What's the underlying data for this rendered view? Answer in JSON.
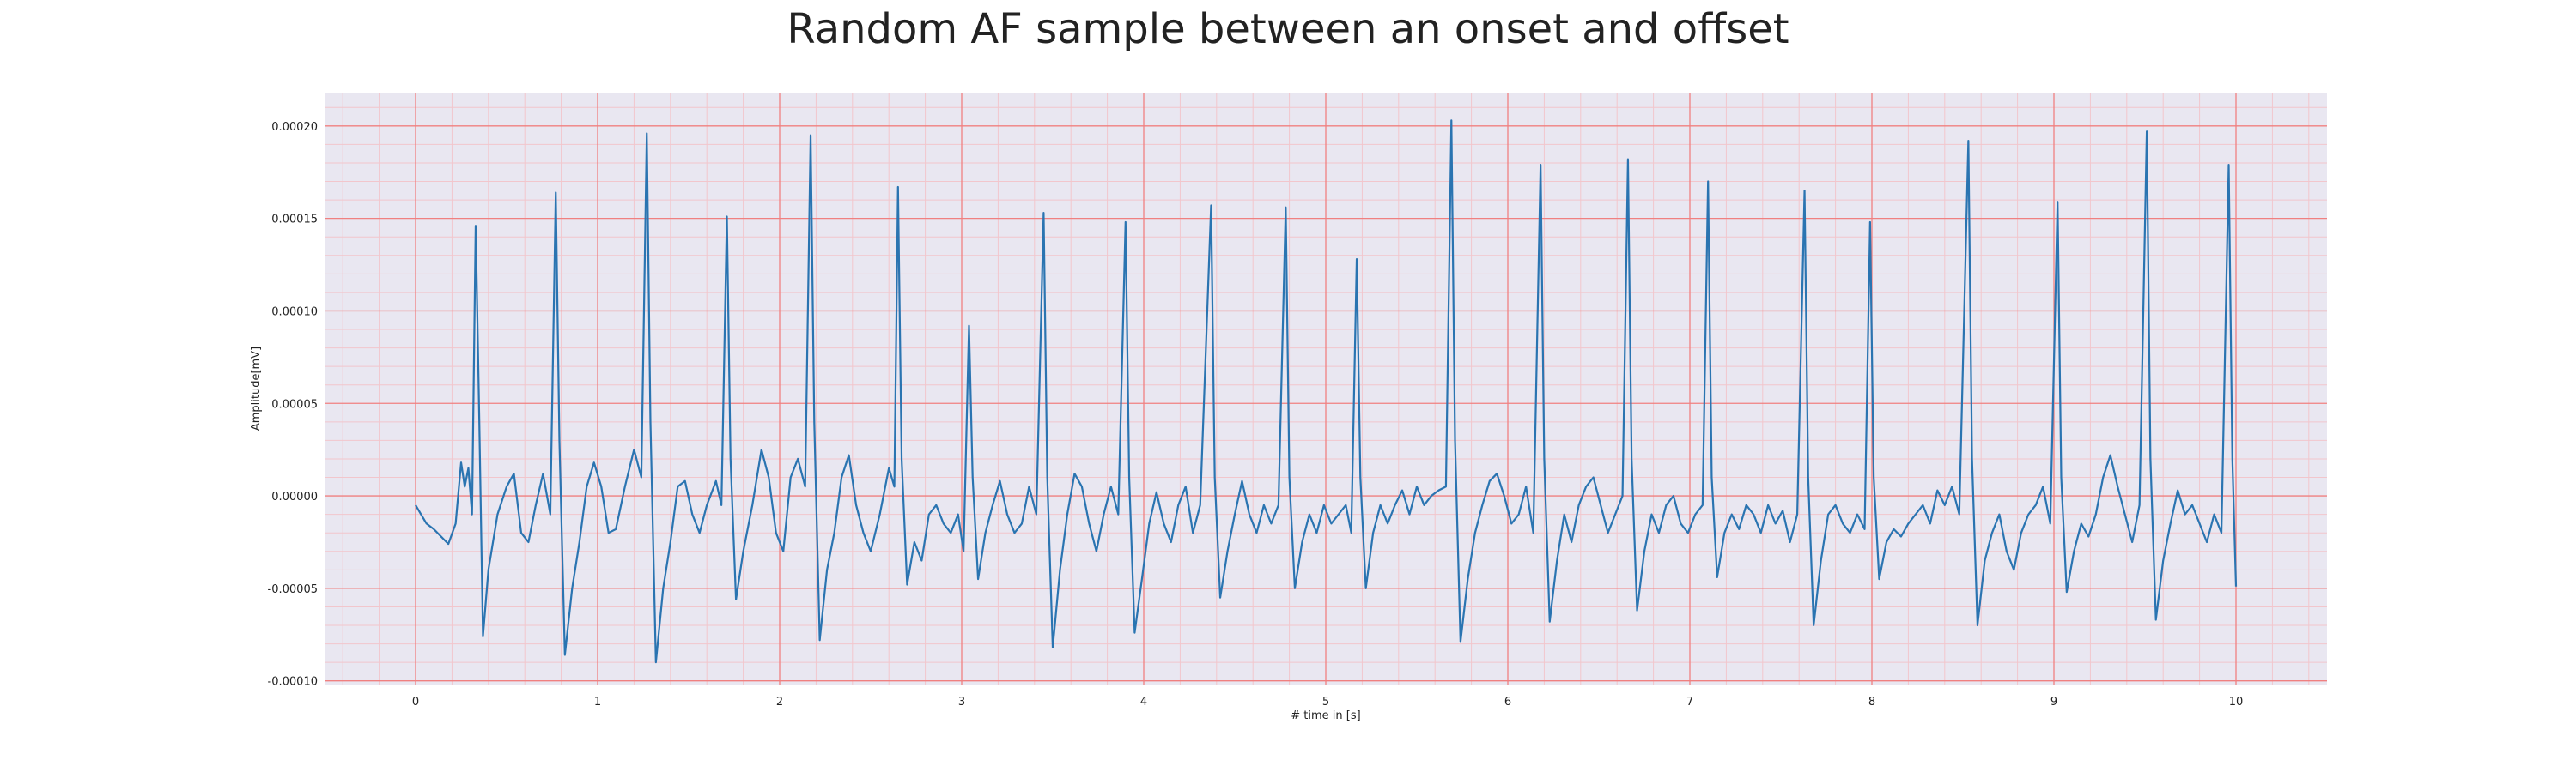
{
  "chart_data": {
    "type": "line",
    "title": "Random AF sample between an onset and offset",
    "xlabel": "# time in [s]",
    "ylabel": "Amplitude[mV]",
    "xlim": [
      -0.5,
      10.5
    ],
    "ylim": [
      -0.000102,
      0.000218
    ],
    "xticks": [
      0,
      1,
      2,
      3,
      4,
      5,
      6,
      7,
      8,
      9,
      10
    ],
    "xtick_labels": [
      "0",
      "1",
      "2",
      "3",
      "4",
      "5",
      "6",
      "7",
      "8",
      "9",
      "10"
    ],
    "yticks": [
      -0.0001,
      -5e-05,
      0.0,
      5e-05,
      0.0001,
      0.00015,
      0.0002
    ],
    "ytick_labels": [
      "-0.00010",
      "-0.00005",
      "0.00000",
      "0.00005",
      "0.00010",
      "0.00015",
      "0.00020"
    ],
    "grid": true,
    "minor_grid": true,
    "legend": "none",
    "colors": {
      "line": "#2a74b1",
      "background": "#e9e7f1",
      "major_grid": "#f08080",
      "minor_grid": "#f2c6cc"
    },
    "series": [
      {
        "values_note_free": true,
        "points": [
          [
            0.0,
            -5e-06
          ],
          [
            0.03,
            -1e-05
          ],
          [
            0.06,
            -1.5e-05
          ],
          [
            0.1,
            -1.8e-05
          ],
          [
            0.14,
            -2.2e-05
          ],
          [
            0.18,
            -2.6e-05
          ],
          [
            0.22,
            -1.5e-05
          ],
          [
            0.25,
            1.8e-05
          ],
          [
            0.27,
            5e-06
          ],
          [
            0.29,
            1.5e-05
          ],
          [
            0.31,
            -1e-05
          ],
          [
            0.33,
            0.000146
          ],
          [
            0.35,
            4e-05
          ],
          [
            0.37,
            -7.6e-05
          ],
          [
            0.4,
            -4e-05
          ],
          [
            0.45,
            -1e-05
          ],
          [
            0.5,
            5e-06
          ],
          [
            0.54,
            1.2e-05
          ],
          [
            0.58,
            -2e-05
          ],
          [
            0.62,
            -2.5e-05
          ],
          [
            0.66,
            -5e-06
          ],
          [
            0.7,
            1.2e-05
          ],
          [
            0.74,
            -1e-05
          ],
          [
            0.77,
            0.000164
          ],
          [
            0.79,
            3e-05
          ],
          [
            0.82,
            -8.6e-05
          ],
          [
            0.86,
            -5e-05
          ],
          [
            0.9,
            -2.5e-05
          ],
          [
            0.94,
            5e-06
          ],
          [
            0.98,
            1.8e-05
          ],
          [
            1.02,
            5e-06
          ],
          [
            1.06,
            -2e-05
          ],
          [
            1.1,
            -1.8e-05
          ],
          [
            1.15,
            5e-06
          ],
          [
            1.2,
            2.5e-05
          ],
          [
            1.24,
            1e-05
          ],
          [
            1.27,
            0.000196
          ],
          [
            1.29,
            4e-05
          ],
          [
            1.32,
            -9e-05
          ],
          [
            1.36,
            -5e-05
          ],
          [
            1.4,
            -2.5e-05
          ],
          [
            1.44,
            5e-06
          ],
          [
            1.48,
            8e-06
          ],
          [
            1.52,
            -1e-05
          ],
          [
            1.56,
            -2e-05
          ],
          [
            1.6,
            -5e-06
          ],
          [
            1.65,
            8e-06
          ],
          [
            1.68,
            -5e-06
          ],
          [
            1.71,
            0.000151
          ],
          [
            1.73,
            2e-05
          ],
          [
            1.76,
            -5.6e-05
          ],
          [
            1.8,
            -3e-05
          ],
          [
            1.85,
            -5e-06
          ],
          [
            1.9,
            2.5e-05
          ],
          [
            1.94,
            1e-05
          ],
          [
            1.98,
            -2e-05
          ],
          [
            2.02,
            -3e-05
          ],
          [
            2.06,
            1e-05
          ],
          [
            2.1,
            2e-05
          ],
          [
            2.14,
            5e-06
          ],
          [
            2.17,
            0.000195
          ],
          [
            2.19,
            4e-05
          ],
          [
            2.22,
            -7.8e-05
          ],
          [
            2.26,
            -4e-05
          ],
          [
            2.3,
            -2e-05
          ],
          [
            2.34,
            1e-05
          ],
          [
            2.38,
            2.2e-05
          ],
          [
            2.42,
            -5e-06
          ],
          [
            2.46,
            -2e-05
          ],
          [
            2.5,
            -3e-05
          ],
          [
            2.55,
            -1e-05
          ],
          [
            2.6,
            1.5e-05
          ],
          [
            2.63,
            5e-06
          ],
          [
            2.65,
            0.000167
          ],
          [
            2.67,
            2e-05
          ],
          [
            2.7,
            -4.8e-05
          ],
          [
            2.74,
            -2.5e-05
          ],
          [
            2.78,
            -3.5e-05
          ],
          [
            2.82,
            -1e-05
          ],
          [
            2.86,
            -5e-06
          ],
          [
            2.9,
            -1.5e-05
          ],
          [
            2.94,
            -2e-05
          ],
          [
            2.98,
            -1e-05
          ],
          [
            3.01,
            -3e-05
          ],
          [
            3.04,
            9.2e-05
          ],
          [
            3.06,
            1e-05
          ],
          [
            3.09,
            -4.5e-05
          ],
          [
            3.13,
            -2e-05
          ],
          [
            3.17,
            -5e-06
          ],
          [
            3.21,
            8e-06
          ],
          [
            3.25,
            -1e-05
          ],
          [
            3.29,
            -2e-05
          ],
          [
            3.33,
            -1.5e-05
          ],
          [
            3.37,
            5e-06
          ],
          [
            3.41,
            -1e-05
          ],
          [
            3.45,
            0.000153
          ],
          [
            3.47,
            1e-05
          ],
          [
            3.5,
            -8.2e-05
          ],
          [
            3.54,
            -4e-05
          ],
          [
            3.58,
            -1e-05
          ],
          [
            3.62,
            1.2e-05
          ],
          [
            3.66,
            5e-06
          ],
          [
            3.7,
            -1.5e-05
          ],
          [
            3.74,
            -3e-05
          ],
          [
            3.78,
            -1e-05
          ],
          [
            3.82,
            5e-06
          ],
          [
            3.86,
            -1e-05
          ],
          [
            3.9,
            0.000148
          ],
          [
            3.92,
            1e-05
          ],
          [
            3.95,
            -7.4e-05
          ],
          [
            3.99,
            -4.5e-05
          ],
          [
            4.03,
            -1.5e-05
          ],
          [
            4.07,
            2e-06
          ],
          [
            4.11,
            -1.5e-05
          ],
          [
            4.15,
            -2.5e-05
          ],
          [
            4.19,
            -5e-06
          ],
          [
            4.23,
            5e-06
          ],
          [
            4.27,
            -2e-05
          ],
          [
            4.31,
            -5e-06
          ],
          [
            4.37,
            0.000157
          ],
          [
            4.39,
            1e-05
          ],
          [
            4.42,
            -5.5e-05
          ],
          [
            4.46,
            -3e-05
          ],
          [
            4.5,
            -1e-05
          ],
          [
            4.54,
            8e-06
          ],
          [
            4.58,
            -1e-05
          ],
          [
            4.62,
            -2e-05
          ],
          [
            4.66,
            -5e-06
          ],
          [
            4.7,
            -1.5e-05
          ],
          [
            4.74,
            -5e-06
          ],
          [
            4.78,
            0.000156
          ],
          [
            4.8,
            1e-05
          ],
          [
            4.83,
            -5e-05
          ],
          [
            4.87,
            -2.5e-05
          ],
          [
            4.91,
            -1e-05
          ],
          [
            4.95,
            -2e-05
          ],
          [
            4.99,
            -5e-06
          ],
          [
            5.03,
            -1.5e-05
          ],
          [
            5.07,
            -1e-05
          ],
          [
            5.11,
            -5e-06
          ],
          [
            5.14,
            -2e-05
          ],
          [
            5.17,
            0.000128
          ],
          [
            5.19,
            1e-05
          ],
          [
            5.22,
            -5e-05
          ],
          [
            5.26,
            -2e-05
          ],
          [
            5.3,
            -5e-06
          ],
          [
            5.34,
            -1.5e-05
          ],
          [
            5.38,
            -5e-06
          ],
          [
            5.42,
            3e-06
          ],
          [
            5.46,
            -1e-05
          ],
          [
            5.5,
            5e-06
          ],
          [
            5.54,
            -5e-06
          ],
          [
            5.58,
            0.0
          ],
          [
            5.62,
            3e-06
          ],
          [
            5.66,
            5e-06
          ],
          [
            5.69,
            0.000203
          ],
          [
            5.71,
            3e-05
          ],
          [
            5.74,
            -7.9e-05
          ],
          [
            5.78,
            -4.5e-05
          ],
          [
            5.82,
            -2e-05
          ],
          [
            5.86,
            -5e-06
          ],
          [
            5.9,
            8e-06
          ],
          [
            5.94,
            1.2e-05
          ],
          [
            5.98,
            0.0
          ],
          [
            6.02,
            -1.5e-05
          ],
          [
            6.06,
            -1e-05
          ],
          [
            6.1,
            5e-06
          ],
          [
            6.14,
            -2e-05
          ],
          [
            6.18,
            0.000179
          ],
          [
            6.2,
            2e-05
          ],
          [
            6.23,
            -6.8e-05
          ],
          [
            6.27,
            -3.5e-05
          ],
          [
            6.31,
            -1e-05
          ],
          [
            6.35,
            -2.5e-05
          ],
          [
            6.39,
            -5e-06
          ],
          [
            6.43,
            5e-06
          ],
          [
            6.47,
            1e-05
          ],
          [
            6.51,
            -5e-06
          ],
          [
            6.55,
            -2e-05
          ],
          [
            6.59,
            -1e-05
          ],
          [
            6.63,
            0.0
          ],
          [
            6.66,
            0.000182
          ],
          [
            6.68,
            2e-05
          ],
          [
            6.71,
            -6.2e-05
          ],
          [
            6.75,
            -3e-05
          ],
          [
            6.79,
            -1e-05
          ],
          [
            6.83,
            -2e-05
          ],
          [
            6.87,
            -5e-06
          ],
          [
            6.91,
            0.0
          ],
          [
            6.95,
            -1.5e-05
          ],
          [
            6.99,
            -2e-05
          ],
          [
            7.03,
            -1e-05
          ],
          [
            7.07,
            -5e-06
          ],
          [
            7.1,
            0.00017
          ],
          [
            7.12,
            1e-05
          ],
          [
            7.15,
            -4.4e-05
          ],
          [
            7.19,
            -2e-05
          ],
          [
            7.23,
            -1e-05
          ],
          [
            7.27,
            -1.8e-05
          ],
          [
            7.31,
            -5e-06
          ],
          [
            7.35,
            -1e-05
          ],
          [
            7.39,
            -2e-05
          ],
          [
            7.43,
            -5e-06
          ],
          [
            7.47,
            -1.5e-05
          ],
          [
            7.51,
            -8e-06
          ],
          [
            7.55,
            -2.5e-05
          ],
          [
            7.59,
            -1e-05
          ],
          [
            7.63,
            0.000165
          ],
          [
            7.65,
            1e-05
          ],
          [
            7.68,
            -7e-05
          ],
          [
            7.72,
            -3.5e-05
          ],
          [
            7.76,
            -1e-05
          ],
          [
            7.8,
            -5e-06
          ],
          [
            7.84,
            -1.5e-05
          ],
          [
            7.88,
            -2e-05
          ],
          [
            7.92,
            -1e-05
          ],
          [
            7.96,
            -1.8e-05
          ],
          [
            7.99,
            0.000148
          ],
          [
            8.01,
            1e-05
          ],
          [
            8.04,
            -4.5e-05
          ],
          [
            8.08,
            -2.5e-05
          ],
          [
            8.12,
            -1.8e-05
          ],
          [
            8.16,
            -2.2e-05
          ],
          [
            8.2,
            -1.5e-05
          ],
          [
            8.24,
            -1e-05
          ],
          [
            8.28,
            -5e-06
          ],
          [
            8.32,
            -1.5e-05
          ],
          [
            8.36,
            3e-06
          ],
          [
            8.4,
            -5e-06
          ],
          [
            8.44,
            5e-06
          ],
          [
            8.48,
            -1e-05
          ],
          [
            8.53,
            0.000192
          ],
          [
            8.55,
            2e-05
          ],
          [
            8.58,
            -7e-05
          ],
          [
            8.62,
            -3.5e-05
          ],
          [
            8.66,
            -2e-05
          ],
          [
            8.7,
            -1e-05
          ],
          [
            8.74,
            -3e-05
          ],
          [
            8.78,
            -4e-05
          ],
          [
            8.82,
            -2e-05
          ],
          [
            8.86,
            -1e-05
          ],
          [
            8.9,
            -5e-06
          ],
          [
            8.94,
            5e-06
          ],
          [
            8.98,
            -1.5e-05
          ],
          [
            9.02,
            0.000159
          ],
          [
            9.04,
            1e-05
          ],
          [
            9.07,
            -5.2e-05
          ],
          [
            9.11,
            -3e-05
          ],
          [
            9.15,
            -1.5e-05
          ],
          [
            9.19,
            -2.2e-05
          ],
          [
            9.23,
            -1e-05
          ],
          [
            9.27,
            1e-05
          ],
          [
            9.31,
            2.2e-05
          ],
          [
            9.35,
            5e-06
          ],
          [
            9.39,
            -1e-05
          ],
          [
            9.43,
            -2.5e-05
          ],
          [
            9.47,
            -5e-06
          ],
          [
            9.51,
            0.000197
          ],
          [
            9.53,
            2e-05
          ],
          [
            9.56,
            -6.7e-05
          ],
          [
            9.6,
            -3.5e-05
          ],
          [
            9.64,
            -1.5e-05
          ],
          [
            9.68,
            3e-06
          ],
          [
            9.72,
            -1e-05
          ],
          [
            9.76,
            -5e-06
          ],
          [
            9.8,
            -1.5e-05
          ],
          [
            9.84,
            -2.5e-05
          ],
          [
            9.88,
            -1e-05
          ],
          [
            9.92,
            -2e-05
          ],
          [
            9.96,
            0.000179
          ],
          [
            9.98,
            2e-05
          ],
          [
            10.0,
            -4.9e-05
          ]
        ]
      }
    ]
  }
}
